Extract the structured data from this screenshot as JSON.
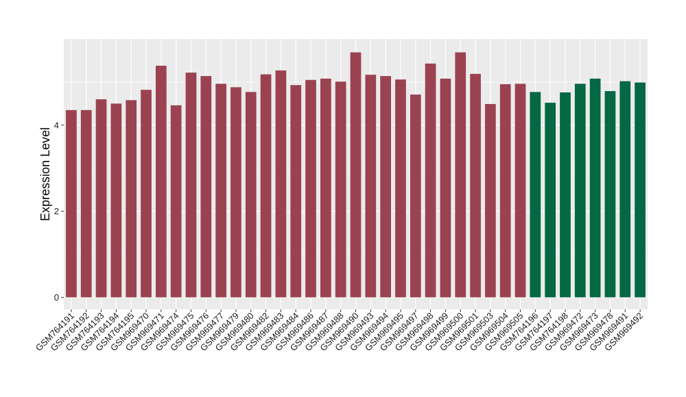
{
  "chart_data": {
    "type": "bar",
    "title": "",
    "xlabel": "",
    "ylabel": "Expression Level",
    "ylim": [
      -0.28,
      6.0
    ],
    "yticks": [
      0,
      2,
      4
    ],
    "grid": true,
    "legend": "none",
    "colors": {
      "group1": "#9b4250",
      "group2": "#036843",
      "panel": "#ebebeb",
      "gridline": "#ffffff"
    },
    "categories": [
      "GSM764191",
      "GSM764192",
      "GSM764193",
      "GSM764194",
      "GSM764195",
      "GSM969470",
      "GSM969471",
      "GSM969474",
      "GSM969475",
      "GSM969476",
      "GSM969477",
      "GSM969479",
      "GSM969480",
      "GSM969482",
      "GSM969483",
      "GSM969484",
      "GSM969486",
      "GSM969487",
      "GSM969488",
      "GSM969490",
      "GSM969493",
      "GSM969494",
      "GSM969495",
      "GSM969497",
      "GSM969498",
      "GSM969499",
      "GSM969500",
      "GSM969501",
      "GSM969503",
      "GSM969504",
      "GSM969505",
      "GSM764196",
      "GSM764197",
      "GSM764198",
      "GSM969472",
      "GSM969473",
      "GSM969478",
      "GSM969491",
      "GSM969492"
    ],
    "values": [
      4.35,
      4.35,
      4.6,
      4.5,
      4.58,
      4.82,
      5.38,
      4.46,
      5.22,
      5.14,
      4.96,
      4.88,
      4.77,
      5.18,
      5.27,
      4.93,
      5.05,
      5.08,
      5.01,
      5.69,
      5.17,
      5.14,
      5.06,
      4.71,
      5.43,
      5.08,
      5.69,
      5.19,
      4.49,
      4.95,
      4.96,
      4.77,
      4.52,
      4.76,
      4.96,
      5.08,
      4.79,
      5.02,
      4.99
    ],
    "groups": [
      "group1",
      "group1",
      "group1",
      "group1",
      "group1",
      "group1",
      "group1",
      "group1",
      "group1",
      "group1",
      "group1",
      "group1",
      "group1",
      "group1",
      "group1",
      "group1",
      "group1",
      "group1",
      "group1",
      "group1",
      "group1",
      "group1",
      "group1",
      "group1",
      "group1",
      "group1",
      "group1",
      "group1",
      "group1",
      "group1",
      "group1",
      "group2",
      "group2",
      "group2",
      "group2",
      "group2",
      "group2",
      "group2",
      "group2"
    ]
  }
}
